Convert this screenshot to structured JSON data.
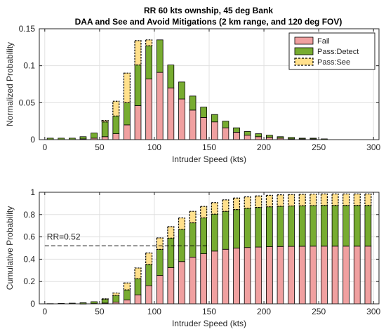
{
  "figure": {
    "title_line1": "RR 60 kts ownship, 45 deg Bank",
    "title_line2": "DAA and See and Avoid Mitigations (2 km range, and 120 deg FOV)"
  },
  "colors": {
    "fail": "#f0a0a0",
    "pass_detect": "#77ac30",
    "pass_see": "#ffe08c",
    "edge": "#000000",
    "grid": "#e0e0e0",
    "rr_line": "#000000"
  },
  "chart_data": [
    {
      "type": "bar",
      "stacked": true,
      "xlabel": "Intruder Speed (kts)",
      "ylabel": "Normalized Probability",
      "xlim": [
        -5,
        305
      ],
      "ylim": [
        0,
        0.15
      ],
      "xticks": [
        "0",
        "50",
        "100",
        "150",
        "200",
        "250",
        "300"
      ],
      "yticks": [
        "0",
        "0.05",
        "0.1",
        "0.15"
      ],
      "grid": true,
      "legend": {
        "position": "top-right",
        "entries": [
          {
            "series": "fail",
            "label": "Fail"
          },
          {
            "series": "pass_detect",
            "label": "Pass:Detect"
          },
          {
            "series": "pass_see",
            "label": "Pass:See"
          }
        ]
      },
      "x": [
        5,
        15,
        25,
        35,
        45,
        55,
        65,
        75,
        85,
        95,
        105,
        115,
        125,
        135,
        145,
        155,
        165,
        175,
        185,
        195,
        205,
        215,
        225,
        235,
        245,
        255,
        265,
        275,
        285,
        295
      ],
      "series": [
        {
          "key": "fail",
          "name": "Fail",
          "values": [
            0.0,
            0.0,
            0.0,
            0.001,
            0.002,
            0.004,
            0.008,
            0.02,
            0.046,
            0.082,
            0.091,
            0.07,
            0.055,
            0.04,
            0.03,
            0.024,
            0.016,
            0.01,
            0.006,
            0.004,
            0.003,
            0.002,
            0.001,
            0.001,
            0.001,
            0.0,
            0.0,
            0.0,
            0.0,
            0.0
          ]
        },
        {
          "key": "pass_detect",
          "name": "Pass:Detect",
          "values": [
            0.002,
            0.002,
            0.002,
            0.003,
            0.007,
            0.02,
            0.024,
            0.03,
            0.055,
            0.045,
            0.044,
            0.031,
            0.023,
            0.019,
            0.014,
            0.01,
            0.009,
            0.006,
            0.005,
            0.004,
            0.003,
            0.002,
            0.002,
            0.001,
            0.001,
            0.001,
            0.0,
            0.0,
            0.0,
            0.0
          ]
        },
        {
          "key": "pass_see",
          "name": "Pass:See",
          "values": [
            0.0,
            0.0,
            0.0,
            0.0,
            0.0,
            0.002,
            0.02,
            0.04,
            0.033,
            0.008,
            0.0,
            0.0,
            0.0,
            0.0,
            0.0,
            0.0,
            0.0,
            0.0,
            0.0,
            0.0,
            0.0,
            0.0,
            0.0,
            0.0,
            0.0,
            0.0,
            0.0,
            0.0,
            0.0,
            0.0
          ]
        }
      ]
    },
    {
      "type": "bar",
      "stacked": true,
      "xlabel": "Intruder Speed (kts)",
      "ylabel": "Cumulative Probability",
      "xlim": [
        -5,
        305
      ],
      "ylim": [
        0,
        1
      ],
      "xticks": [
        "0",
        "50",
        "100",
        "150",
        "200",
        "250",
        "300"
      ],
      "yticks": [
        "0",
        "0.2",
        "0.4",
        "0.6",
        "0.8",
        "1"
      ],
      "grid": true,
      "annotation": {
        "text": "RR=0.52",
        "y": 0.52,
        "x_from": 0,
        "x_to": 150
      },
      "x": [
        5,
        15,
        25,
        35,
        45,
        55,
        65,
        75,
        85,
        95,
        105,
        115,
        125,
        135,
        145,
        155,
        165,
        175,
        185,
        195,
        205,
        215,
        225,
        235,
        245,
        255,
        265,
        275,
        285,
        295
      ],
      "series": [
        {
          "key": "fail",
          "name": "Fail",
          "values": [
            0.0,
            0.0,
            0.0,
            0.001,
            0.003,
            0.007,
            0.015,
            0.035,
            0.081,
            0.163,
            0.254,
            0.324,
            0.379,
            0.419,
            0.449,
            0.473,
            0.489,
            0.499,
            0.505,
            0.509,
            0.512,
            0.514,
            0.515,
            0.516,
            0.517,
            0.517,
            0.517,
            0.517,
            0.517,
            0.517
          ]
        },
        {
          "key": "pass_detect",
          "name": "Pass:Detect",
          "values": [
            0.002,
            0.004,
            0.006,
            0.009,
            0.016,
            0.036,
            0.06,
            0.09,
            0.145,
            0.19,
            0.234,
            0.265,
            0.288,
            0.307,
            0.321,
            0.331,
            0.34,
            0.346,
            0.351,
            0.355,
            0.358,
            0.36,
            0.362,
            0.363,
            0.364,
            0.365,
            0.365,
            0.365,
            0.365,
            0.365
          ]
        },
        {
          "key": "pass_see",
          "name": "Pass:See",
          "values": [
            0.0,
            0.0,
            0.0,
            0.0,
            0.0,
            0.002,
            0.022,
            0.062,
            0.095,
            0.103,
            0.103,
            0.103,
            0.103,
            0.103,
            0.103,
            0.103,
            0.103,
            0.103,
            0.103,
            0.103,
            0.103,
            0.103,
            0.103,
            0.103,
            0.103,
            0.103,
            0.103,
            0.103,
            0.103,
            0.103
          ]
        }
      ]
    }
  ]
}
